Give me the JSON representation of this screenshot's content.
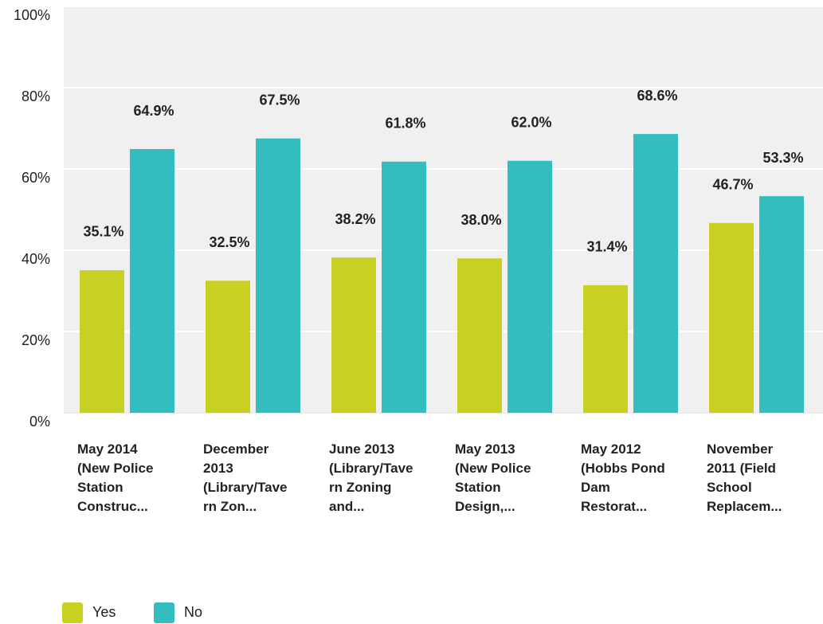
{
  "chart_data": {
    "type": "bar",
    "categories": [
      "May 2014 (New Police Station Construc...",
      "December 2013 (Library/Tavern Zon...",
      "June 2013 (Library/Tavern Zoning and...",
      "May 2013 (New Police Station Design,...",
      "May 2012 (Hobbs Pond Dam Restorat...",
      "November 2011 (Field School Replacem..."
    ],
    "series": [
      {
        "name": "Yes",
        "color": "#c8d022",
        "values": [
          35.1,
          32.5,
          38.2,
          38.0,
          31.4,
          46.7
        ],
        "value_labels": [
          "35.1%",
          "32.5%",
          "38.2%",
          "38.0%",
          "31.4%",
          "46.7%"
        ]
      },
      {
        "name": "No",
        "color": "#33bdbf",
        "values": [
          64.9,
          67.5,
          61.8,
          62.0,
          68.6,
          53.3
        ],
        "value_labels": [
          "64.9%",
          "67.5%",
          "61.8%",
          "62.0%",
          "68.6%",
          "53.3%"
        ]
      }
    ],
    "ylim": [
      0,
      100
    ],
    "yticks": [
      {
        "value": 0,
        "label": "0%"
      },
      {
        "value": 20,
        "label": "20%"
      },
      {
        "value": 40,
        "label": "40%"
      },
      {
        "value": 60,
        "label": "60%"
      },
      {
        "value": 80,
        "label": "80%"
      },
      {
        "value": 100,
        "label": "100%"
      }
    ],
    "grid": true,
    "legend": "bottom-left"
  }
}
